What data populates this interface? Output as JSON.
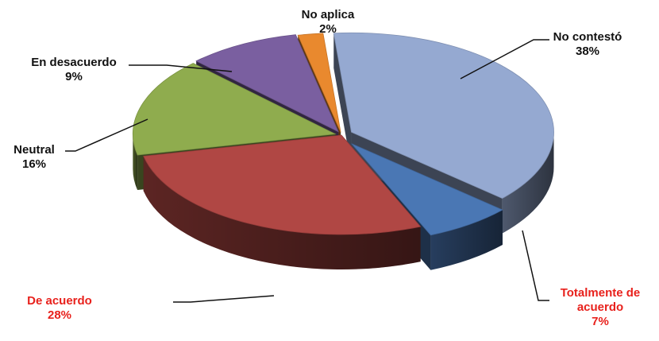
{
  "chart_data": {
    "type": "pie",
    "style": "3d-exploded",
    "title": "",
    "slices": [
      {
        "label": "No contestó",
        "value": 38,
        "display": "38%",
        "color": "#95a9d1",
        "label_color": "#111111"
      },
      {
        "label": "Totalmente de acuerdo",
        "value": 7,
        "display": "7%",
        "color": "#4a77b4",
        "label_color": "#e8211c"
      },
      {
        "label": "De acuerdo",
        "value": 28,
        "display": "28%",
        "color": "#b04744",
        "label_color": "#e8211c"
      },
      {
        "label": "Neutral",
        "value": 16,
        "display": "16%",
        "color": "#8fac4e",
        "label_color": "#111111"
      },
      {
        "label": "En desacuerdo",
        "value": 9,
        "display": "9%",
        "color": "#7a5fa0",
        "label_color": "#111111"
      },
      {
        "label": "No aplica",
        "value": 2,
        "display": "2%",
        "color": "#e9892e",
        "label_color": "#111111"
      }
    ],
    "legend": "none",
    "grid": false
  },
  "labels": {
    "no_contesto": {
      "name": "No contestó",
      "pct": "38%"
    },
    "totalmente_l1": "Totalmente de",
    "totalmente_l2": "acuerdo",
    "totalmente_pct": "7%",
    "de_acuerdo": {
      "name": "De acuerdo",
      "pct": "28%"
    },
    "neutral": {
      "name": "Neutral",
      "pct": "16%"
    },
    "en_desacuerdo": {
      "name": "En desacuerdo",
      "pct": "9%"
    },
    "no_aplica": {
      "name": "No aplica",
      "pct": "2%"
    }
  }
}
